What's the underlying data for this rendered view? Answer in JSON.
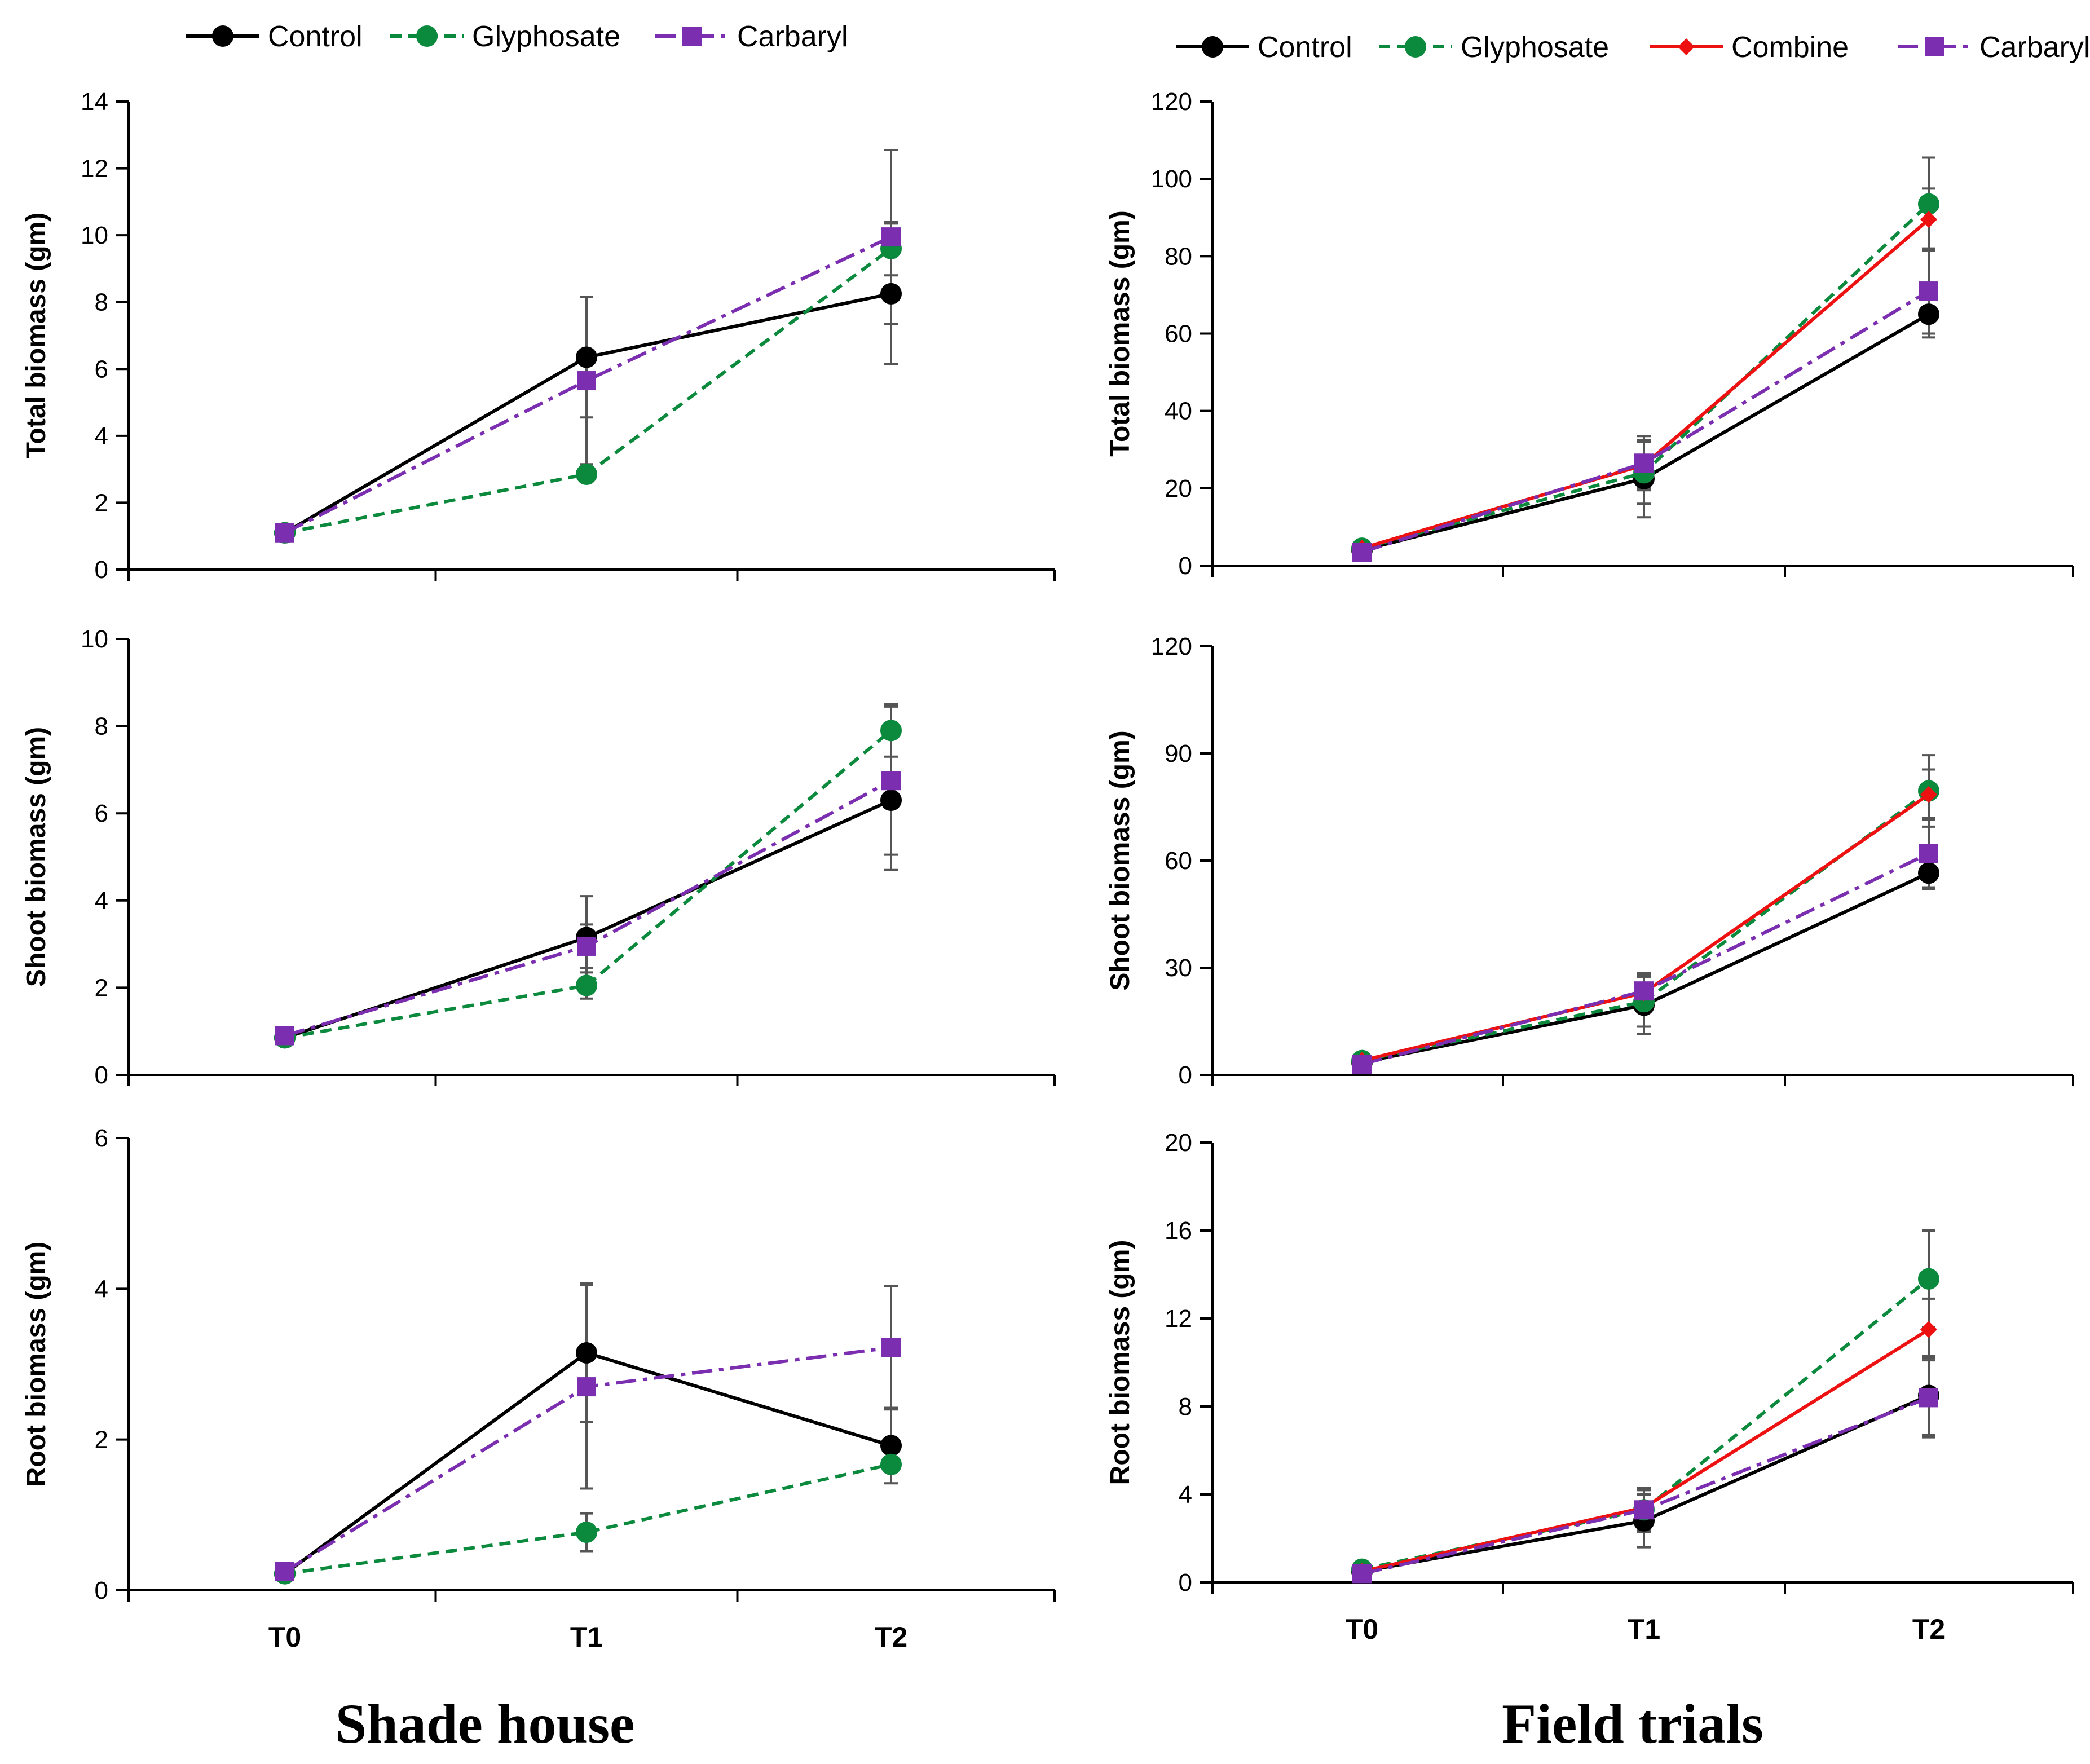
{
  "colors": {
    "Control": "#000000",
    "Glyphosate": "#0b8a3d",
    "Combine": "#ee1111",
    "Carbaryl": "#7b2fb0",
    "error_bar": "#555555",
    "axis": "#000000"
  },
  "series_style": {
    "Control": {
      "dash": "",
      "marker": "circle"
    },
    "Glyphosate": {
      "dash": "20,12",
      "marker": "circle"
    },
    "Combine": {
      "dash": "",
      "marker": "diamond"
    },
    "Carbaryl": {
      "dash": "36,12,8,12",
      "marker": "square"
    }
  },
  "legends": {
    "left": [
      "Control",
      "Glyphosate",
      "Carbaryl"
    ],
    "right": [
      "Control",
      "Glyphosate",
      "Combine",
      "Carbaryl"
    ]
  },
  "captions": {
    "left": "Shade house",
    "right": "Field trials"
  },
  "chart_data": [
    {
      "id": "shade-total",
      "type": "line",
      "categories": [
        "T0",
        "T1",
        "T2"
      ],
      "show_categories": false,
      "ylabel": "Total biomass (gm)",
      "ylim": [
        0,
        14
      ],
      "yticks": [
        0,
        2,
        4,
        6,
        8,
        10,
        12,
        14
      ],
      "series": [
        {
          "name": "Control",
          "values": [
            1.1,
            6.35,
            8.25
          ],
          "errors": [
            0.0,
            1.8,
            2.1
          ]
        },
        {
          "name": "Glyphosate",
          "values": [
            1.1,
            2.85,
            9.6
          ],
          "errors": [
            0.0,
            0.2,
            0.8
          ]
        },
        {
          "name": "Carbaryl",
          "values": [
            1.1,
            5.65,
            9.95
          ],
          "errors": [
            0.0,
            2.5,
            2.6
          ]
        }
      ]
    },
    {
      "id": "field-total",
      "type": "line",
      "categories": [
        "T0",
        "T1",
        "T2"
      ],
      "show_categories": false,
      "ylabel": "Total biomass (gm)",
      "ylim": [
        0,
        120
      ],
      "yticks": [
        0,
        20,
        40,
        60,
        80,
        100,
        120
      ],
      "series": [
        {
          "name": "Control",
          "values": [
            4.0,
            22.5,
            65.0
          ],
          "errors": [
            1.0,
            10.0,
            6.0
          ]
        },
        {
          "name": "Glyphosate",
          "values": [
            4.5,
            24.0,
            93.5
          ],
          "errors": [
            1.0,
            8.0,
            12.0
          ]
        },
        {
          "name": "Combine",
          "values": [
            4.5,
            26.0,
            89.5
          ],
          "errors": [
            1.0,
            6.0,
            8.0
          ]
        },
        {
          "name": "Carbaryl",
          "values": [
            3.5,
            26.5,
            71.0
          ],
          "errors": [
            1.0,
            7.0,
            11.0
          ]
        }
      ]
    },
    {
      "id": "shade-shoot",
      "type": "line",
      "categories": [
        "T0",
        "T1",
        "T2"
      ],
      "show_categories": false,
      "ylabel": "Shoot  biomass (gm)",
      "ylim": [
        0,
        10
      ],
      "yticks": [
        0,
        2,
        4,
        6,
        8,
        10
      ],
      "series": [
        {
          "name": "Control",
          "values": [
            0.85,
            3.15,
            6.3
          ],
          "errors": [
            0.0,
            0.95,
            1.6
          ]
        },
        {
          "name": "Glyphosate",
          "values": [
            0.85,
            2.05,
            7.9
          ],
          "errors": [
            0.0,
            0.3,
            0.6
          ]
        },
        {
          "name": "Carbaryl",
          "values": [
            0.9,
            2.95,
            6.75
          ],
          "errors": [
            0.0,
            0.5,
            1.7
          ]
        }
      ]
    },
    {
      "id": "field-shoot",
      "type": "line",
      "categories": [
        "T0",
        "T1",
        "T2"
      ],
      "show_categories": false,
      "ylabel": "Shoot biomass (gm)",
      "ylim": [
        0,
        120
      ],
      "yticks": [
        0,
        30,
        60,
        90,
        120
      ],
      "series": [
        {
          "name": "Control",
          "values": [
            3.5,
            19.5,
            56.5
          ],
          "errors": [
            1.0,
            8.0,
            4.0
          ]
        },
        {
          "name": "Glyphosate",
          "values": [
            4.0,
            20.5,
            79.5
          ],
          "errors": [
            1.0,
            7.0,
            10.0
          ]
        },
        {
          "name": "Combine",
          "values": [
            4.0,
            23.0,
            78.5
          ],
          "errors": [
            1.0,
            5.0,
            7.0
          ]
        },
        {
          "name": "Carbaryl",
          "values": [
            3.0,
            23.5,
            62.0
          ],
          "errors": [
            1.0,
            5.0,
            10.0
          ]
        }
      ]
    },
    {
      "id": "shade-root",
      "type": "line",
      "categories": [
        "T0",
        "T1",
        "T2"
      ],
      "show_categories": true,
      "ylabel": "Root biomass (gm)",
      "ylim": [
        0,
        6
      ],
      "yticks": [
        0,
        2,
        4,
        6
      ],
      "series": [
        {
          "name": "Control",
          "values": [
            0.22,
            3.15,
            1.92
          ],
          "errors": [
            0.0,
            0.92,
            0.5
          ]
        },
        {
          "name": "Glyphosate",
          "values": [
            0.22,
            0.77,
            1.67
          ],
          "errors": [
            0.0,
            0.25,
            0.1
          ]
        },
        {
          "name": "Carbaryl",
          "values": [
            0.25,
            2.7,
            3.22
          ],
          "errors": [
            0.0,
            1.35,
            0.82
          ]
        }
      ]
    },
    {
      "id": "field-root",
      "type": "line",
      "categories": [
        "T0",
        "T1",
        "T2"
      ],
      "show_categories": true,
      "ylabel": "Root biomass (gm)",
      "ylim": [
        0,
        20
      ],
      "yticks": [
        0,
        4,
        8,
        12,
        16,
        20
      ],
      "series": [
        {
          "name": "Control",
          "values": [
            0.5,
            2.8,
            8.5
          ],
          "errors": [
            0.2,
            1.2,
            1.8
          ]
        },
        {
          "name": "Glyphosate",
          "values": [
            0.6,
            3.3,
            13.8
          ],
          "errors": [
            0.2,
            1.0,
            2.2
          ]
        },
        {
          "name": "Combine",
          "values": [
            0.5,
            3.4,
            11.5
          ],
          "errors": [
            0.2,
            0.8,
            1.4
          ]
        },
        {
          "name": "Carbaryl",
          "values": [
            0.4,
            3.3,
            8.4
          ],
          "errors": [
            0.2,
            0.9,
            1.8
          ]
        }
      ]
    }
  ]
}
